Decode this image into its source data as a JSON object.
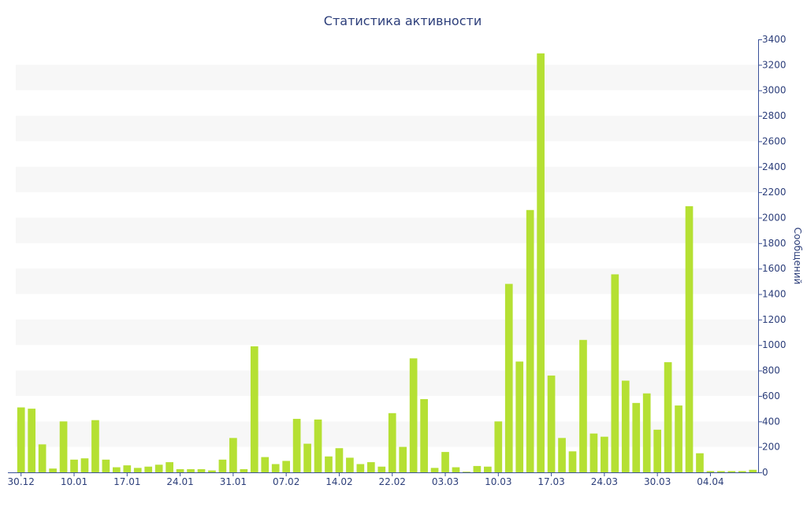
{
  "chart_data": {
    "type": "bar",
    "title": "Статистика активности",
    "xlabel": "",
    "ylabel": "Сообщений",
    "ylim": [
      0,
      3400
    ],
    "y_axis_position": "right",
    "y_ticks": [
      0,
      200,
      400,
      600,
      800,
      1000,
      1200,
      1400,
      1600,
      1800,
      2000,
      2200,
      2400,
      2600,
      2800,
      3000,
      3200,
      3400
    ],
    "y_tick_labels": [
      "0",
      "200",
      "400",
      "600",
      "800",
      "1000",
      "1200",
      "1400",
      "1600",
      "1800",
      "2000",
      "2200",
      "2400",
      "2600",
      "2800",
      "3000",
      "3200",
      "3400"
    ],
    "x_tick_labels": [
      "30.12",
      "10.01",
      "17.01",
      "24.01",
      "31.01",
      "07.02",
      "14.02",
      "22.02",
      "03.03",
      "10.03",
      "17.03",
      "24.03",
      "30.03",
      "04.04"
    ],
    "x_tick_bar_index": [
      0,
      5,
      10,
      15,
      20,
      25,
      30,
      35,
      40,
      45,
      50,
      55,
      60,
      65
    ],
    "values": [
      510,
      500,
      220,
      30,
      400,
      100,
      110,
      410,
      100,
      40,
      55,
      35,
      45,
      60,
      80,
      25,
      25,
      25,
      15,
      100,
      270,
      25,
      990,
      120,
      65,
      90,
      420,
      225,
      415,
      125,
      190,
      115,
      65,
      80,
      45,
      465,
      200,
      895,
      575,
      35,
      160,
      40,
      5,
      50,
      45,
      400,
      1480,
      870,
      2060,
      3290,
      760,
      270,
      165,
      1040,
      305,
      280,
      1555,
      720,
      545,
      620,
      335,
      865,
      525,
      2090,
      150,
      10,
      10,
      10,
      10,
      20
    ],
    "grid": "horizontal bands",
    "legend": "none",
    "colors": {
      "bar": "#b5e033",
      "band": "#f7f7f7",
      "text": "#2c3e7a",
      "axis": "#3a5199"
    }
  }
}
